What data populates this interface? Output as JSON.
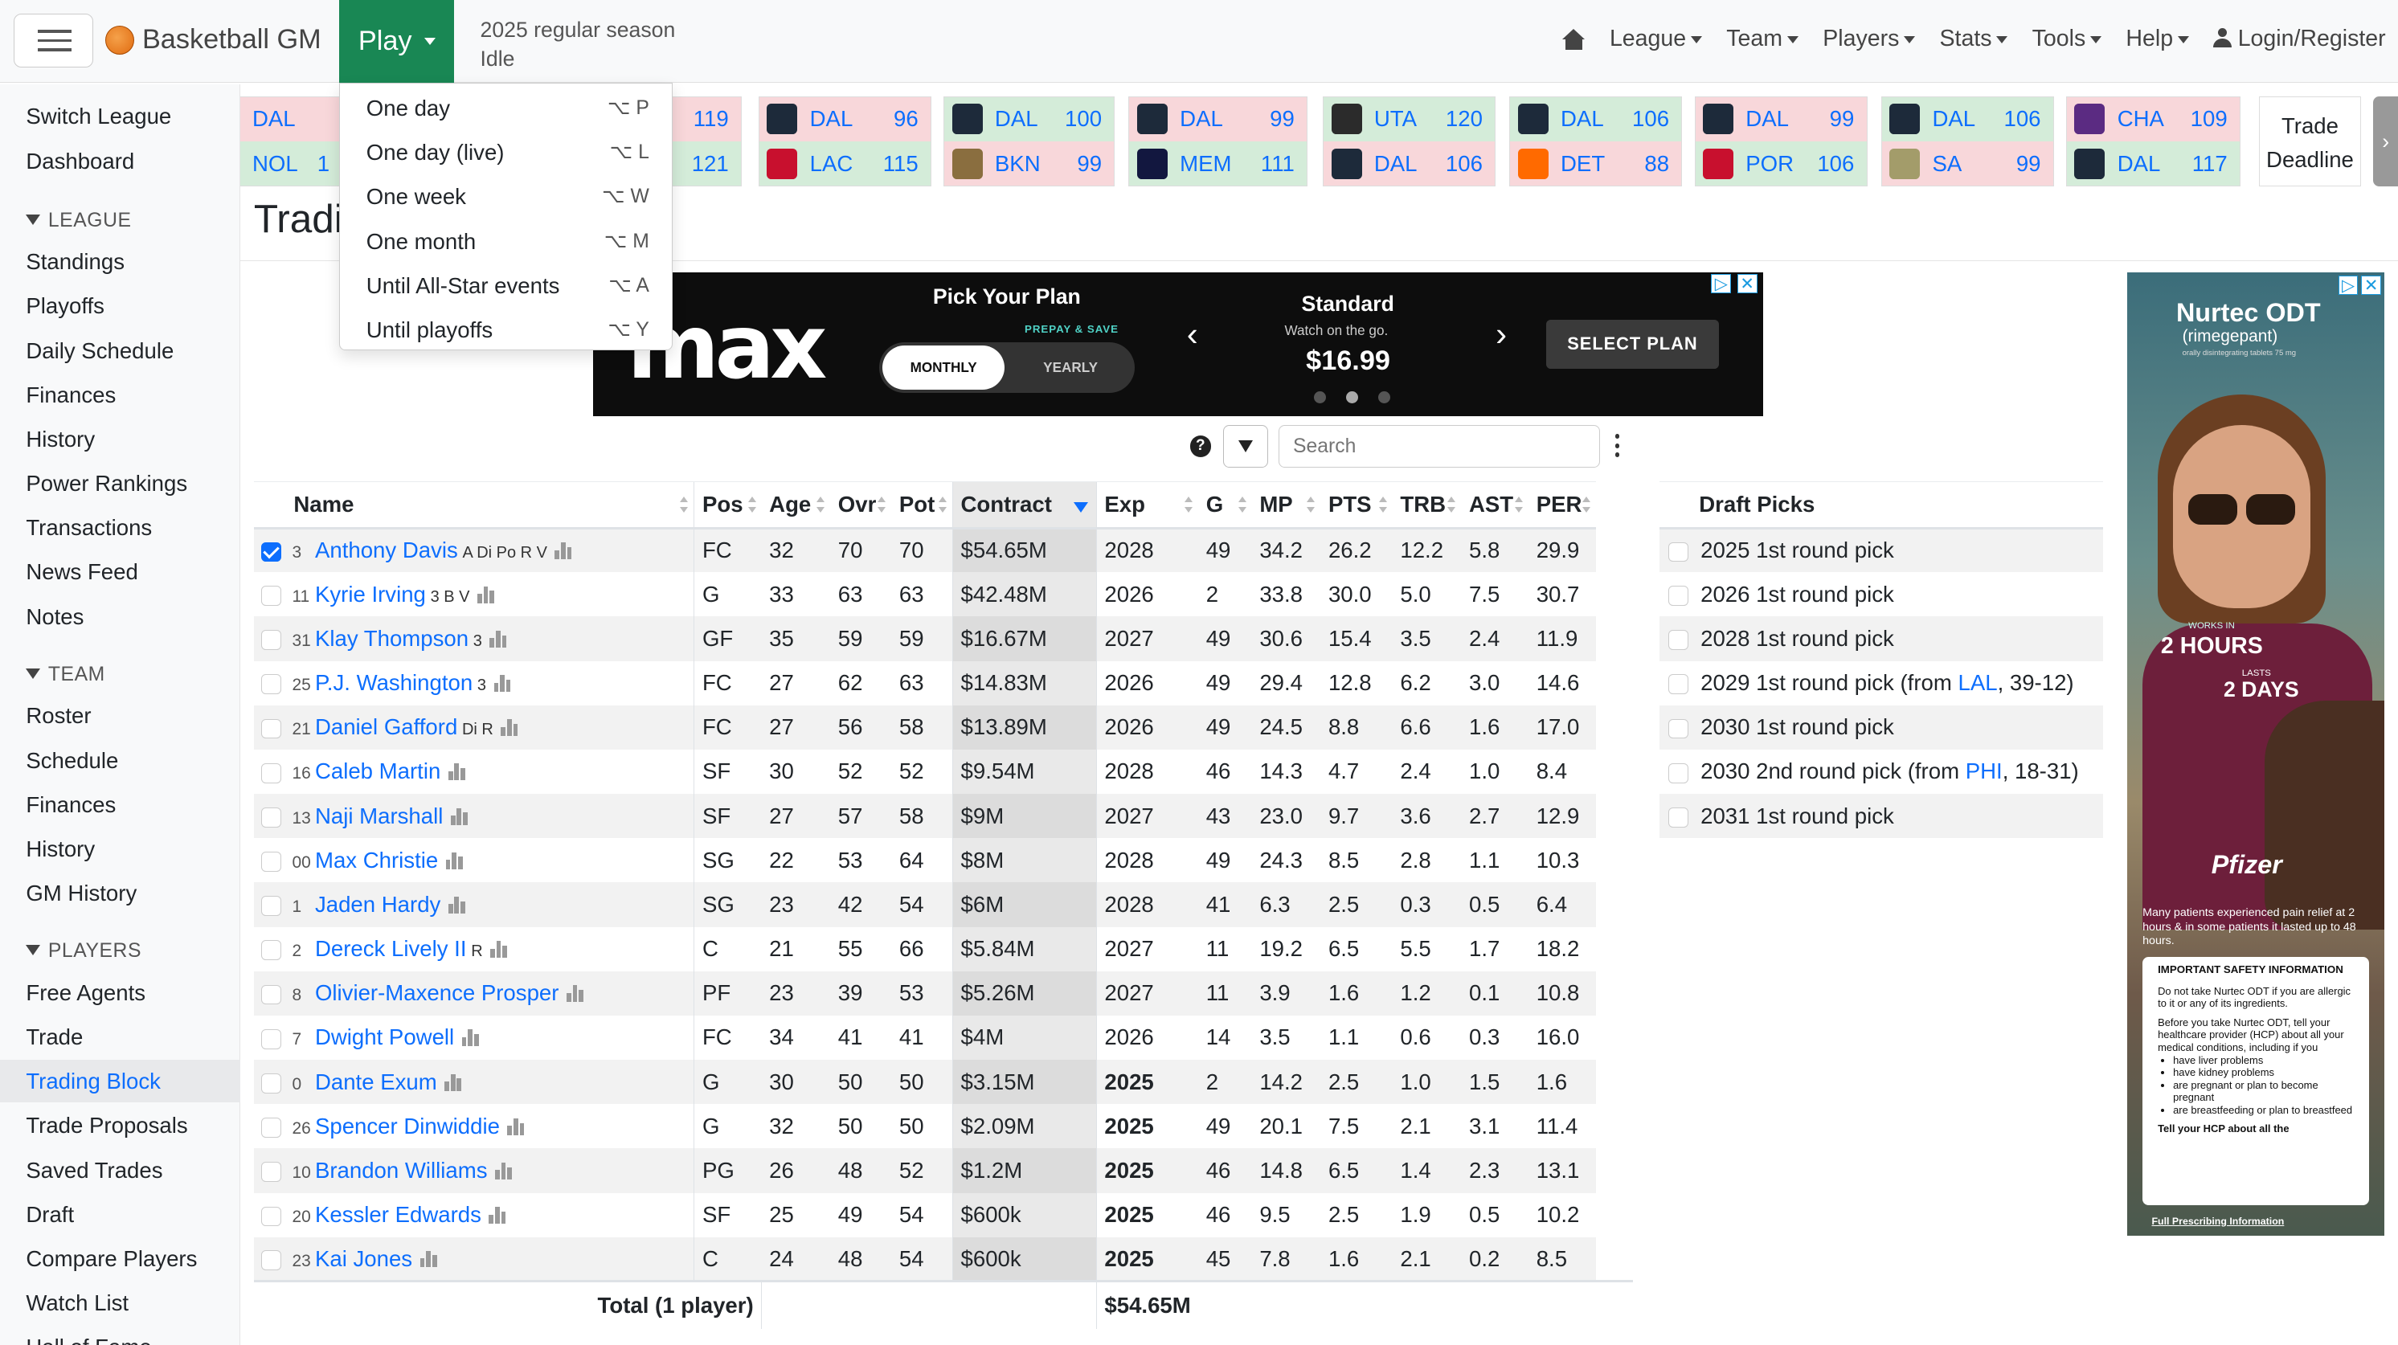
{
  "navbar": {
    "brand": "Basketball GM",
    "play_label": "Play",
    "season_line1": "2025 regular season",
    "season_line2": "Idle",
    "menu": [
      "League",
      "Team",
      "Players",
      "Stats",
      "Tools",
      "Help"
    ],
    "login": "Login/Register"
  },
  "play_menu": [
    {
      "label": "One day",
      "shortcut": "⌥ P"
    },
    {
      "label": "One day (live)",
      "shortcut": "⌥ L"
    },
    {
      "label": "One week",
      "shortcut": "⌥ W"
    },
    {
      "label": "One month",
      "shortcut": "⌥ M"
    },
    {
      "label": "Until All-Star events",
      "shortcut": "⌥ A"
    },
    {
      "label": "Until playoffs",
      "shortcut": "⌥ Y"
    }
  ],
  "sidebar": {
    "top": [
      "Switch League",
      "Dashboard"
    ],
    "league_header": "LEAGUE",
    "league": [
      "Standings",
      "Playoffs",
      "Daily Schedule",
      "Finances",
      "History",
      "Power Rankings",
      "Transactions",
      "News Feed",
      "Notes"
    ],
    "team_header": "TEAM",
    "team": [
      "Roster",
      "Schedule",
      "Finances",
      "History",
      "GM History"
    ],
    "players_header": "PLAYERS",
    "players": [
      "Free Agents",
      "Trade",
      "Trading Block",
      "Trade Proposals",
      "Saved Trades",
      "Draft",
      "Compare Players",
      "Watch List",
      "Hall of Fame"
    ],
    "active": "Trading Block"
  },
  "scoreboard": [
    {
      "t1": "DAL",
      "s1": "",
      "t2": "NOL",
      "s2": "1",
      "w": 2
    },
    {
      "t1": "",
      "s1": "119",
      "t2": "",
      "s2": "121",
      "w": 2
    },
    {
      "t1": "DAL",
      "s1": "96",
      "t2": "LAC",
      "s2": "115",
      "w": 2
    },
    {
      "t1": "DAL",
      "s1": "100",
      "t2": "BKN",
      "s2": "99",
      "w": 1
    },
    {
      "t1": "DAL",
      "s1": "99",
      "t2": "MEM",
      "s2": "111",
      "w": 2
    },
    {
      "t1": "UTA",
      "s1": "120",
      "t2": "DAL",
      "s2": "106",
      "w": 1
    },
    {
      "t1": "DAL",
      "s1": "106",
      "t2": "DET",
      "s2": "88",
      "w": 1
    },
    {
      "t1": "DAL",
      "s1": "99",
      "t2": "POR",
      "s2": "106",
      "w": 2
    },
    {
      "t1": "DAL",
      "s1": "106",
      "t2": "SA",
      "s2": "99",
      "w": 1
    },
    {
      "t1": "CHA",
      "s1": "109",
      "t2": "DAL",
      "s2": "117",
      "w": 2
    }
  ],
  "trade_deadline": "Trade Deadline",
  "page_title": "Tradi",
  "ad_max": {
    "logo": "max",
    "pick_plan": "Pick Your Plan",
    "prepay": "PREPAY & SAVE",
    "monthly": "MONTHLY",
    "yearly": "YEARLY",
    "plan": "Standard",
    "watch": "Watch on the go.",
    "price": "$16.99",
    "cta": "SELECT PLAN"
  },
  "search_placeholder": "Search",
  "roster_headers": [
    "Name",
    "Pos",
    "Age",
    "Ovr",
    "Pot",
    "Contract",
    "Exp",
    "G",
    "MP",
    "PTS",
    "TRB",
    "AST",
    "PER"
  ],
  "roster": [
    {
      "checked": true,
      "jersey": "3",
      "name": "Anthony Davis",
      "skills": "A Di Po R V",
      "pos": "FC",
      "age": "32",
      "ovr": "70",
      "pot": "70",
      "contract": "$54.65M",
      "exp": "2028",
      "expiring": false,
      "g": "49",
      "mp": "34.2",
      "pts": "26.2",
      "trb": "12.2",
      "ast": "5.8",
      "per": "29.9"
    },
    {
      "checked": false,
      "jersey": "11",
      "name": "Kyrie Irving",
      "skills": "3 B V",
      "pos": "G",
      "age": "33",
      "ovr": "63",
      "pot": "63",
      "contract": "$42.48M",
      "exp": "2026",
      "expiring": false,
      "g": "2",
      "mp": "33.8",
      "pts": "30.0",
      "trb": "5.0",
      "ast": "7.5",
      "per": "30.7"
    },
    {
      "checked": false,
      "jersey": "31",
      "name": "Klay Thompson",
      "skills": "3",
      "pos": "GF",
      "age": "35",
      "ovr": "59",
      "pot": "59",
      "contract": "$16.67M",
      "exp": "2027",
      "expiring": false,
      "g": "49",
      "mp": "30.6",
      "pts": "15.4",
      "trb": "3.5",
      "ast": "2.4",
      "per": "11.9"
    },
    {
      "checked": false,
      "jersey": "25",
      "name": "P.J. Washington",
      "skills": "3",
      "pos": "FC",
      "age": "27",
      "ovr": "62",
      "pot": "63",
      "contract": "$14.83M",
      "exp": "2026",
      "expiring": false,
      "g": "49",
      "mp": "29.4",
      "pts": "12.8",
      "trb": "6.2",
      "ast": "3.0",
      "per": "14.6"
    },
    {
      "checked": false,
      "jersey": "21",
      "name": "Daniel Gafford",
      "skills": "Di R",
      "pos": "FC",
      "age": "27",
      "ovr": "56",
      "pot": "58",
      "contract": "$13.89M",
      "exp": "2026",
      "expiring": false,
      "g": "49",
      "mp": "24.5",
      "pts": "8.8",
      "trb": "6.6",
      "ast": "1.6",
      "per": "17.0"
    },
    {
      "checked": false,
      "jersey": "16",
      "name": "Caleb Martin",
      "skills": "",
      "pos": "SF",
      "age": "30",
      "ovr": "52",
      "pot": "52",
      "contract": "$9.54M",
      "exp": "2028",
      "expiring": false,
      "g": "46",
      "mp": "14.3",
      "pts": "4.7",
      "trb": "2.4",
      "ast": "1.0",
      "per": "8.4"
    },
    {
      "checked": false,
      "jersey": "13",
      "name": "Naji Marshall",
      "skills": "",
      "pos": "SF",
      "age": "27",
      "ovr": "57",
      "pot": "58",
      "contract": "$9M",
      "exp": "2027",
      "expiring": false,
      "g": "43",
      "mp": "23.0",
      "pts": "9.7",
      "trb": "3.6",
      "ast": "2.7",
      "per": "12.9"
    },
    {
      "checked": false,
      "jersey": "00",
      "name": "Max Christie",
      "skills": "",
      "pos": "SG",
      "age": "22",
      "ovr": "53",
      "pot": "64",
      "contract": "$8M",
      "exp": "2028",
      "expiring": false,
      "g": "49",
      "mp": "24.3",
      "pts": "8.5",
      "trb": "2.8",
      "ast": "1.1",
      "per": "10.3"
    },
    {
      "checked": false,
      "jersey": "1",
      "name": "Jaden Hardy",
      "skills": "",
      "pos": "SG",
      "age": "23",
      "ovr": "42",
      "pot": "54",
      "contract": "$6M",
      "exp": "2028",
      "expiring": false,
      "g": "41",
      "mp": "6.3",
      "pts": "2.5",
      "trb": "0.3",
      "ast": "0.5",
      "per": "6.4"
    },
    {
      "checked": false,
      "jersey": "2",
      "name": "Dereck Lively II",
      "skills": "R",
      "pos": "C",
      "age": "21",
      "ovr": "55",
      "pot": "66",
      "contract": "$5.84M",
      "exp": "2027",
      "expiring": false,
      "g": "11",
      "mp": "19.2",
      "pts": "6.5",
      "trb": "5.5",
      "ast": "1.7",
      "per": "18.2"
    },
    {
      "checked": false,
      "jersey": "8",
      "name": "Olivier-Maxence Prosper",
      "skills": "",
      "pos": "PF",
      "age": "23",
      "ovr": "39",
      "pot": "53",
      "contract": "$5.26M",
      "exp": "2027",
      "expiring": false,
      "g": "11",
      "mp": "3.9",
      "pts": "1.6",
      "trb": "1.2",
      "ast": "0.1",
      "per": "10.8"
    },
    {
      "checked": false,
      "jersey": "7",
      "name": "Dwight Powell",
      "skills": "",
      "pos": "FC",
      "age": "34",
      "ovr": "41",
      "pot": "41",
      "contract": "$4M",
      "exp": "2026",
      "expiring": false,
      "g": "14",
      "mp": "3.5",
      "pts": "1.1",
      "trb": "0.6",
      "ast": "0.3",
      "per": "16.0"
    },
    {
      "checked": false,
      "jersey": "0",
      "name": "Dante Exum",
      "skills": "",
      "pos": "G",
      "age": "30",
      "ovr": "50",
      "pot": "50",
      "contract": "$3.15M",
      "exp": "2025",
      "expiring": true,
      "g": "2",
      "mp": "14.2",
      "pts": "2.5",
      "trb": "1.0",
      "ast": "1.5",
      "per": "1.6"
    },
    {
      "checked": false,
      "jersey": "26",
      "name": "Spencer Dinwiddie",
      "skills": "",
      "pos": "G",
      "age": "32",
      "ovr": "50",
      "pot": "50",
      "contract": "$2.09M",
      "exp": "2025",
      "expiring": true,
      "g": "49",
      "mp": "20.1",
      "pts": "7.5",
      "trb": "2.1",
      "ast": "3.1",
      "per": "11.4"
    },
    {
      "checked": false,
      "jersey": "10",
      "name": "Brandon Williams",
      "skills": "",
      "pos": "PG",
      "age": "26",
      "ovr": "48",
      "pot": "52",
      "contract": "$1.2M",
      "exp": "2025",
      "expiring": true,
      "g": "46",
      "mp": "14.8",
      "pts": "6.5",
      "trb": "1.4",
      "ast": "2.3",
      "per": "13.1"
    },
    {
      "checked": false,
      "jersey": "20",
      "name": "Kessler Edwards",
      "skills": "",
      "pos": "SF",
      "age": "25",
      "ovr": "49",
      "pot": "54",
      "contract": "$600k",
      "exp": "2025",
      "expiring": true,
      "g": "46",
      "mp": "9.5",
      "pts": "2.5",
      "trb": "1.9",
      "ast": "0.5",
      "per": "10.2"
    },
    {
      "checked": false,
      "jersey": "23",
      "name": "Kai Jones",
      "skills": "",
      "pos": "C",
      "age": "24",
      "ovr": "48",
      "pot": "54",
      "contract": "$600k",
      "exp": "2025",
      "expiring": true,
      "g": "45",
      "mp": "7.8",
      "pts": "1.6",
      "trb": "2.1",
      "ast": "0.2",
      "per": "8.5"
    }
  ],
  "total": {
    "label": "Total (1 player)",
    "contract": "$54.65M"
  },
  "draft_header": "Draft Picks",
  "draft_picks": [
    {
      "pre": "2025 1st round pick",
      "team": "",
      "post": ""
    },
    {
      "pre": "2026 1st round pick",
      "team": "",
      "post": ""
    },
    {
      "pre": "2028 1st round pick",
      "team": "",
      "post": ""
    },
    {
      "pre": "2029 1st round pick (from ",
      "team": "LAL",
      "post": ", 39-12)"
    },
    {
      "pre": "2030 1st round pick",
      "team": "",
      "post": ""
    },
    {
      "pre": "2030 2nd round pick (from ",
      "team": "PHI",
      "post": ", 18-31)"
    },
    {
      "pre": "2031 1st round pick",
      "team": "",
      "post": ""
    }
  ],
  "ad_side": {
    "brand": "Nurtec ODT",
    "generic": "(rimegepant)",
    "tiny": "orally disintegrating tablets 75 mg",
    "works_in": "WORKS IN",
    "hours": "2 HOURS",
    "lasts": "LASTS",
    "days": "2 DAYS",
    "pfizer": "Pfizer",
    "claim": "Many patients experienced pain relief at 2 hours & in some patients it lasted up to 48 hours.",
    "safety_title": "IMPORTANT SAFETY INFORMATION",
    "safety_1": "Do not take Nurtec ODT if you are allergic to it or any of its ingredients.",
    "safety_2": "Before you take Nurtec ODT, tell your healthcare provider (HCP) about all your medical conditions, including if you",
    "bullets": [
      "have liver problems",
      "have kidney problems",
      "are pregnant or plan to become pregnant",
      "are breastfeeding or plan to breastfeed"
    ],
    "safety_3": "Tell your HCP about all the",
    "fpi": "Full Prescribing Information"
  },
  "colors": {
    "play": "#198754",
    "link": "#0d6efd",
    "win": "#d4ecd9",
    "loss": "#f8d7da"
  }
}
